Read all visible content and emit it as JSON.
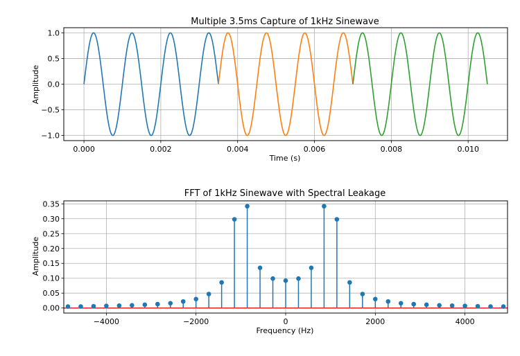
{
  "chart_data": [
    {
      "type": "line",
      "title": "Multiple 3.5ms Capture of 1kHz Sinewave",
      "xlabel": "Time (s)",
      "ylabel": "Amplitude",
      "xlim": [
        -0.000525,
        0.011025
      ],
      "ylim": [
        -1.1,
        1.1
      ],
      "xticks": [
        0,
        0.002,
        0.004,
        0.006,
        0.008,
        0.01
      ],
      "xtick_labels": [
        "0.000",
        "0.002",
        "0.004",
        "0.006",
        "0.008",
        "0.010"
      ],
      "yticks": [
        -1.0,
        -0.5,
        0.0,
        0.5,
        1.0
      ],
      "ytick_labels": [
        "−1.0",
        "−0.5",
        "0.0",
        "0.5",
        "1.0"
      ],
      "grid": true,
      "frequency_hz": 1000,
      "series": [
        {
          "t_start": 0.0,
          "t_end": 0.0035,
          "color": "#1f77b4"
        },
        {
          "t_start": 0.0035,
          "t_end": 0.007,
          "color": "#ff7f0e"
        },
        {
          "t_start": 0.007,
          "t_end": 0.0105,
          "color": "#2ca02c"
        }
      ]
    },
    {
      "type": "stem",
      "title": "FFT of 1kHz Sinewave with Spectral Leakage",
      "xlabel": "Frequency (Hz)",
      "ylabel": "Amplitude",
      "xlim": [
        -4950,
        4950
      ],
      "ylim": [
        -0.017,
        0.36
      ],
      "xticks": [
        -4000,
        -2000,
        0,
        2000,
        4000
      ],
      "xtick_labels": [
        "−4000",
        "−2000",
        "0",
        "2000",
        "4000"
      ],
      "yticks": [
        0.0,
        0.05,
        0.1,
        0.15,
        0.2,
        0.25,
        0.3,
        0.35
      ],
      "ytick_labels": [
        "0.00",
        "0.05",
        "0.10",
        "0.15",
        "0.20",
        "0.25",
        "0.30",
        "0.35"
      ],
      "grid": true,
      "stem_color": "#1f77b4",
      "baseline_color": "#d62728",
      "x": [
        -4857.1,
        -4571.4,
        -4285.7,
        -4000.0,
        -3714.3,
        -3428.6,
        -3142.9,
        -2857.1,
        -2571.4,
        -2285.7,
        -2000.0,
        -1714.3,
        -1428.6,
        -1142.9,
        -857.1,
        -571.4,
        -285.7,
        0.0,
        285.7,
        571.4,
        857.1,
        1142.9,
        1428.6,
        1714.3,
        2000.0,
        2285.7,
        2571.4,
        2857.1,
        3142.9,
        3428.6,
        3714.3,
        4000.0,
        4285.7,
        4571.4,
        4857.1
      ],
      "values": [
        0.005,
        0.005,
        0.006,
        0.007,
        0.008,
        0.009,
        0.011,
        0.013,
        0.016,
        0.022,
        0.03,
        0.047,
        0.086,
        0.298,
        0.342,
        0.135,
        0.099,
        0.092,
        0.099,
        0.135,
        0.342,
        0.298,
        0.086,
        0.047,
        0.03,
        0.022,
        0.016,
        0.013,
        0.011,
        0.009,
        0.008,
        0.007,
        0.006,
        0.005,
        0.005
      ]
    }
  ]
}
